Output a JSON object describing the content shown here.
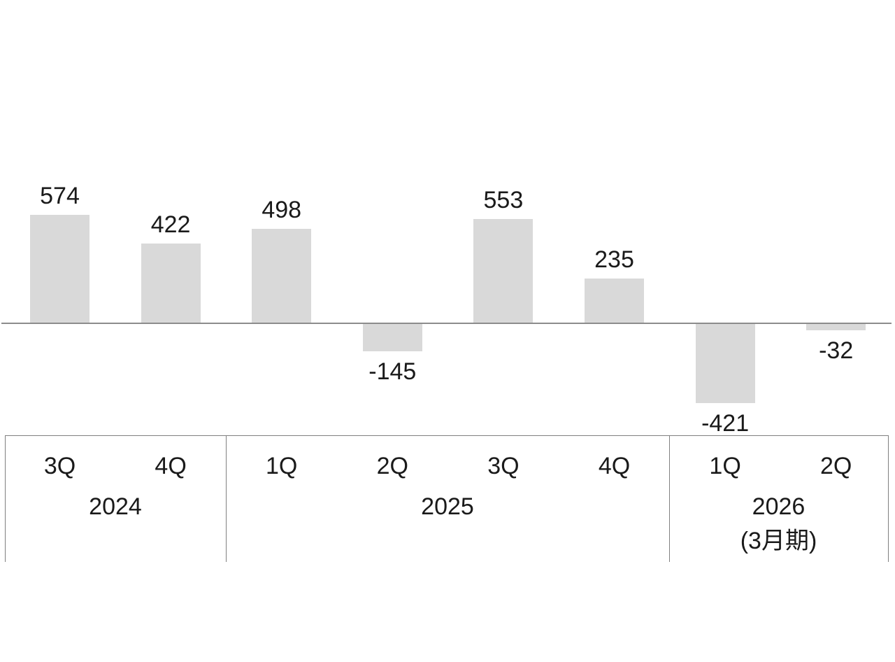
{
  "chart_data": {
    "type": "bar",
    "title": "",
    "categories": [
      "3Q",
      "4Q",
      "1Q",
      "2Q",
      "3Q",
      "4Q",
      "1Q",
      "2Q"
    ],
    "values": [
      574,
      422,
      498,
      -145,
      553,
      235,
      -421,
      -32
    ],
    "data_labels": [
      "574",
      "422",
      "498",
      "-145",
      "553",
      "235",
      "-421",
      "-32"
    ],
    "year_groups": [
      {
        "label": "2024",
        "note": "",
        "quarters": [
          "3Q",
          "4Q"
        ]
      },
      {
        "label": "2025",
        "note": "",
        "quarters": [
          "1Q",
          "2Q",
          "3Q",
          "4Q"
        ]
      },
      {
        "label": "2026",
        "note": "(3月期)",
        "quarters": [
          "1Q",
          "2Q"
        ]
      }
    ],
    "xlabel": "",
    "ylabel": "",
    "ylim": [
      -500,
      650
    ],
    "baseline_value": 0,
    "grid": false,
    "legend": false,
    "colors": {
      "bar": "#d9d9d9",
      "axis_line": "#8c8c8c",
      "table_border": "#808080",
      "text": "#1a1a1a",
      "background": "#ffffff"
    }
  }
}
